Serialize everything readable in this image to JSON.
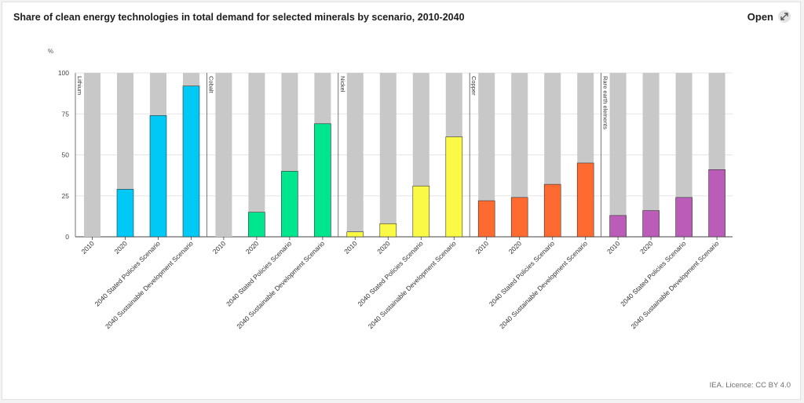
{
  "header": {
    "title": "Share of clean energy technologies in total demand for selected minerals by scenario, 2010-2040",
    "open_label": "Open"
  },
  "footer": {
    "licence": "IEA. Licence: CC BY 4.0"
  },
  "icons": {
    "open": "expand-arrows-icon"
  },
  "chart_data": {
    "type": "bar",
    "stacked_to": 100,
    "y_unit": "%",
    "ylim": [
      0,
      100
    ],
    "yticks": [
      0,
      25,
      50,
      75,
      100
    ],
    "grid": true,
    "remainder_color": "#c8c8c8",
    "groups": [
      {
        "name": "Lithium",
        "color": "#00c9f5",
        "categories": [
          "2010",
          "2020",
          "2040 Stated Policies Scenario",
          "2040 Sustainable Development Scenario"
        ],
        "values": [
          0,
          29,
          74,
          92
        ]
      },
      {
        "name": "Cobalt",
        "color": "#00e68f",
        "categories": [
          "2010",
          "2020",
          "2040 Stated Policies Scenario",
          "2040 Sustainable Development Scenario"
        ],
        "values": [
          0,
          15,
          40,
          69
        ]
      },
      {
        "name": "Nickel",
        "color": "#fafa46",
        "categories": [
          "2010",
          "2020",
          "2040 Stated Policies Scenario",
          "2040 Sustainable Development Scenario"
        ],
        "values": [
          3,
          8,
          31,
          61
        ]
      },
      {
        "name": "Copper",
        "color": "#ff6a30",
        "categories": [
          "2010",
          "2020",
          "2040 Stated Policies Scenario",
          "2040 Sustainable Development Scenario"
        ],
        "values": [
          22,
          24,
          32,
          45
        ]
      },
      {
        "name": "Rare earth elements",
        "color": "#bb5cb8",
        "categories": [
          "2010",
          "2020",
          "2040 Stated Policies Scenario",
          "2040 Sustainable Development Scenario"
        ],
        "values": [
          13,
          16,
          24,
          41
        ]
      }
    ]
  }
}
